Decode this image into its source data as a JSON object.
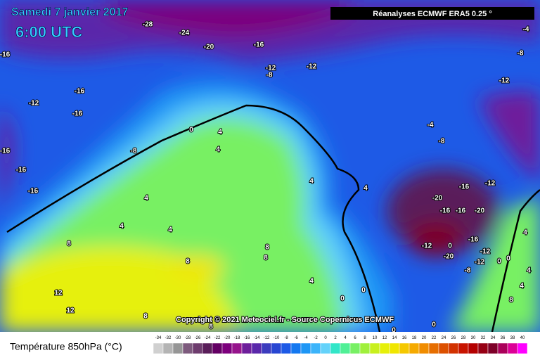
{
  "header": {
    "date": "Samedi 7 janvier 2017",
    "time": "6:00 UTC",
    "source": "Réanalyses ECMWF ERA5 0.25 °"
  },
  "copyright": "Copyright © 2021 Meteociel.fr - Source Copernicus ECMWF",
  "legend": {
    "title": "Température 850hPa (°C)",
    "labels": [
      -34,
      -32,
      -30,
      -28,
      -26,
      -24,
      -22,
      -20,
      -18,
      -16,
      -14,
      -12,
      -10,
      -8,
      -6,
      -4,
      -2,
      0,
      2,
      4,
      6,
      8,
      10,
      12,
      14,
      16,
      18,
      20,
      22,
      24,
      26,
      28,
      30,
      32,
      34,
      36,
      38,
      40
    ],
    "colors": [
      "#d0d0d0",
      "#b4b4b4",
      "#969696",
      "#7d5a7d",
      "#6e3c6e",
      "#5a1e5a",
      "#640064",
      "#7d007d",
      "#96148c",
      "#6e1e9b",
      "#5a28aa",
      "#3c3cbe",
      "#2846d2",
      "#1e5ae6",
      "#1478f0",
      "#1e96f5",
      "#3cb4fa",
      "#64d2fa",
      "#32e6c8",
      "#50f096",
      "#78f064",
      "#a0f03c",
      "#c8f01e",
      "#e6f00a",
      "#f0e600",
      "#f5c800",
      "#f5aa00",
      "#f08c00",
      "#e66e00",
      "#dc5000",
      "#d23200",
      "#c81400",
      "#b40000",
      "#960014",
      "#7d0028",
      "#aa005a",
      "#dc0096",
      "#ff00ff"
    ]
  },
  "contour_labels": [
    -28,
    -24,
    -20,
    -16,
    -12,
    -8,
    -12,
    -16,
    -12,
    -16,
    -16,
    -16,
    -16,
    -16,
    -8,
    0,
    4,
    4,
    4,
    4,
    4,
    8,
    8,
    8,
    8,
    12,
    12,
    4,
    4,
    4,
    0,
    0,
    -4,
    -8,
    -12,
    -8,
    -4,
    -20,
    -16,
    -12,
    -16,
    -16,
    -20,
    -12,
    0,
    -20,
    -16,
    -12,
    -12,
    -8,
    0,
    0,
    4,
    4,
    4,
    8,
    0,
    0,
    8,
    8
  ]
}
